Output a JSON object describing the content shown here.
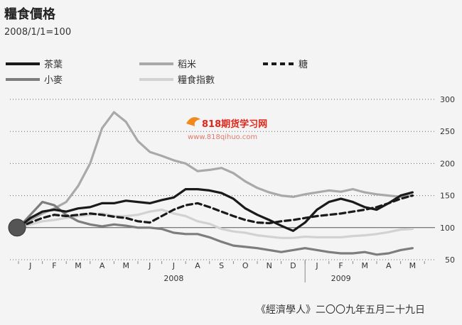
{
  "header": {
    "title": "糧食價格",
    "subtitle": "2008/1/1=100"
  },
  "watermark": {
    "brand": "818期货学习网",
    "url": "www.818qihuo.com"
  },
  "source": "《經濟學人》二〇〇九年五月二十九日",
  "chart_data": {
    "type": "line",
    "title": "糧食價格",
    "subtitle": "2008/1/1=100",
    "x_tick_labels": [
      "J",
      "F",
      "M",
      "A",
      "M",
      "J",
      "J",
      "A",
      "S",
      "O",
      "N",
      "D",
      "J",
      "F",
      "M",
      "A",
      "M"
    ],
    "year_labels": [
      {
        "label": "2008",
        "at_month": 6.5
      },
      {
        "label": "2009",
        "at_month": 13.5
      }
    ],
    "x_unit": "months since 2008/1/1",
    "ylim": [
      50,
      300
    ],
    "y_ticks": [
      50,
      100,
      150,
      200,
      250,
      300
    ],
    "reference_line": 100,
    "grid": "dotted horizontal",
    "legend_position": "top",
    "series": [
      {
        "name": "茶葉",
        "color": "#1a1a1a",
        "dash": "solid",
        "x": [
          0,
          0.5,
          1,
          1.5,
          2,
          2.5,
          3,
          3.5,
          4,
          4.5,
          5,
          5.5,
          6,
          6.5,
          7,
          7.5,
          8,
          8.5,
          9,
          9.5,
          10,
          10.5,
          11,
          11.5,
          12,
          12.5,
          13,
          13.5,
          14,
          14.5,
          15,
          15.5,
          16,
          16.5
        ],
        "y": [
          100,
          115,
          125,
          128,
          125,
          130,
          132,
          138,
          138,
          142,
          140,
          138,
          143,
          147,
          160,
          160,
          158,
          154,
          145,
          130,
          120,
          112,
          103,
          95,
          108,
          128,
          140,
          145,
          140,
          132,
          128,
          138,
          150,
          155
        ]
      },
      {
        "name": "稻米",
        "color": "#a9a9a9",
        "dash": "solid",
        "x": [
          0,
          0.5,
          1,
          1.5,
          2,
          2.5,
          3,
          3.5,
          4,
          4.5,
          5,
          5.5,
          6,
          6.5,
          7,
          7.5,
          8,
          8.5,
          9,
          9.5,
          10,
          10.5,
          11,
          11.5,
          12,
          12.5,
          13,
          13.5,
          14,
          14.5,
          15,
          15.5,
          16,
          16.5
        ],
        "y": [
          100,
          112,
          122,
          130,
          140,
          165,
          200,
          255,
          280,
          265,
          235,
          218,
          212,
          205,
          200,
          188,
          190,
          193,
          185,
          172,
          162,
          155,
          150,
          148,
          152,
          155,
          158,
          156,
          160,
          155,
          152,
          150,
          148,
          150
        ]
      },
      {
        "name": "糖",
        "color": "#1a1a1a",
        "dash": "dashed",
        "x": [
          0,
          0.5,
          1,
          1.5,
          2,
          2.5,
          3,
          3.5,
          4,
          4.5,
          5,
          5.5,
          6,
          6.5,
          7,
          7.5,
          8,
          8.5,
          9,
          9.5,
          10,
          10.5,
          11,
          11.5,
          12,
          12.5,
          13,
          13.5,
          14,
          14.5,
          15,
          15.5,
          16,
          16.5
        ],
        "y": [
          100,
          108,
          115,
          120,
          118,
          120,
          122,
          120,
          117,
          115,
          110,
          108,
          118,
          128,
          135,
          138,
          132,
          125,
          118,
          112,
          108,
          107,
          110,
          112,
          115,
          118,
          120,
          122,
          125,
          128,
          132,
          138,
          145,
          150
        ]
      },
      {
        "name": "小麥",
        "color": "#7d7d7d",
        "dash": "solid",
        "x": [
          0,
          0.5,
          1,
          1.5,
          2,
          2.5,
          3,
          3.5,
          4,
          4.5,
          5,
          5.5,
          6,
          6.5,
          7,
          7.5,
          8,
          8.5,
          9,
          9.5,
          10,
          10.5,
          11,
          11.5,
          12,
          12.5,
          13,
          13.5,
          14,
          14.5,
          15,
          15.5,
          16,
          16.5
        ],
        "y": [
          100,
          120,
          140,
          135,
          120,
          110,
          105,
          102,
          105,
          103,
          100,
          100,
          98,
          92,
          90,
          90,
          85,
          78,
          72,
          70,
          68,
          65,
          62,
          65,
          68,
          65,
          62,
          60,
          60,
          62,
          58,
          60,
          65,
          68
        ]
      },
      {
        "name": "糧食指數",
        "color": "#d2d2d2",
        "dash": "solid",
        "x": [
          0,
          0.5,
          1,
          1.5,
          2,
          2.5,
          3,
          3.5,
          4,
          4.5,
          5,
          5.5,
          6,
          6.5,
          7,
          7.5,
          8,
          8.5,
          9,
          9.5,
          10,
          10.5,
          11,
          11.5,
          12,
          12.5,
          13,
          13.5,
          14,
          14.5,
          15,
          15.5,
          16,
          16.5
        ],
        "y": [
          100,
          105,
          110,
          112,
          115,
          118,
          120,
          122,
          118,
          118,
          120,
          125,
          128,
          122,
          118,
          110,
          106,
          98,
          94,
          92,
          88,
          86,
          84,
          84,
          86,
          85,
          85,
          85,
          87,
          88,
          90,
          93,
          97,
          98
        ]
      }
    ]
  }
}
